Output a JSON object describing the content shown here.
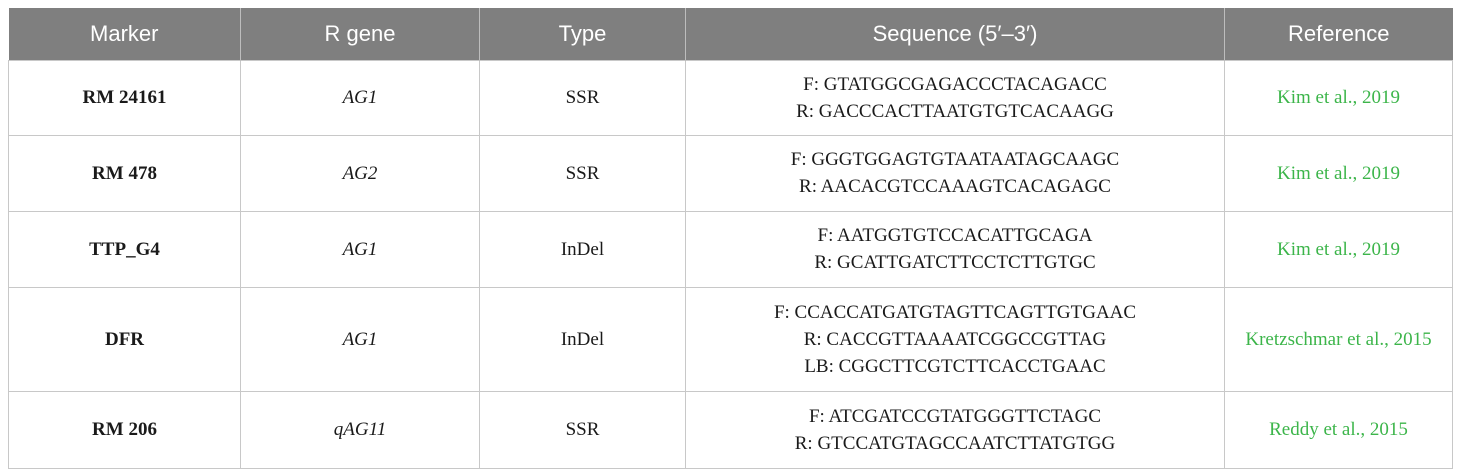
{
  "table": {
    "headers": [
      "Marker",
      "R gene",
      "Type",
      "Sequence (5′–3′)",
      "Reference"
    ],
    "rows": [
      {
        "marker": "RM 24161",
        "gene": "AG1",
        "type": "SSR",
        "sequence": [
          "F: GTATGGCGAGACCCTACAGACC",
          "R: GACCCACTTAATGTGTCACAAGG"
        ],
        "reference": "Kim et al., 2019"
      },
      {
        "marker": "RM 478",
        "gene": "AG2",
        "type": "SSR",
        "sequence": [
          "F: GGGTGGAGTGTAATAATAGCAAGC",
          "R: AACACGTCCAAAGTCACAGAGC"
        ],
        "reference": "Kim et al., 2019"
      },
      {
        "marker": "TTP_G4",
        "gene": "AG1",
        "type": "InDel",
        "sequence": [
          "F: AATGGTGTCCACATTGCAGA",
          "R: GCATTGATCTTCCTCTTGTGC"
        ],
        "reference": "Kim et al., 2019"
      },
      {
        "marker": "DFR",
        "gene": "AG1",
        "type": "InDel",
        "sequence": [
          "F: CCACCATGATGTAGTTCAGTTGTGAAC",
          "R: CACCGTTAAAATCGGCCGTTAG",
          "LB: CGGCTTCGTCTTCACCTGAAC"
        ],
        "reference": "Kretzschmar et al., 2015"
      },
      {
        "marker": "RM 206",
        "gene": "qAG11",
        "type": "SSR",
        "sequence": [
          "F: ATCGATCCGTATGGGTTCTAGC",
          "R: GTCCATGTAGCCAATCTTATGTGG"
        ],
        "reference": "Reddy et al., 2015"
      }
    ]
  },
  "colors": {
    "header_bg": "#7f7f7f",
    "header_text": "#ffffff",
    "reference_link": "#3cb54a",
    "grid": "#c8c8c8"
  }
}
